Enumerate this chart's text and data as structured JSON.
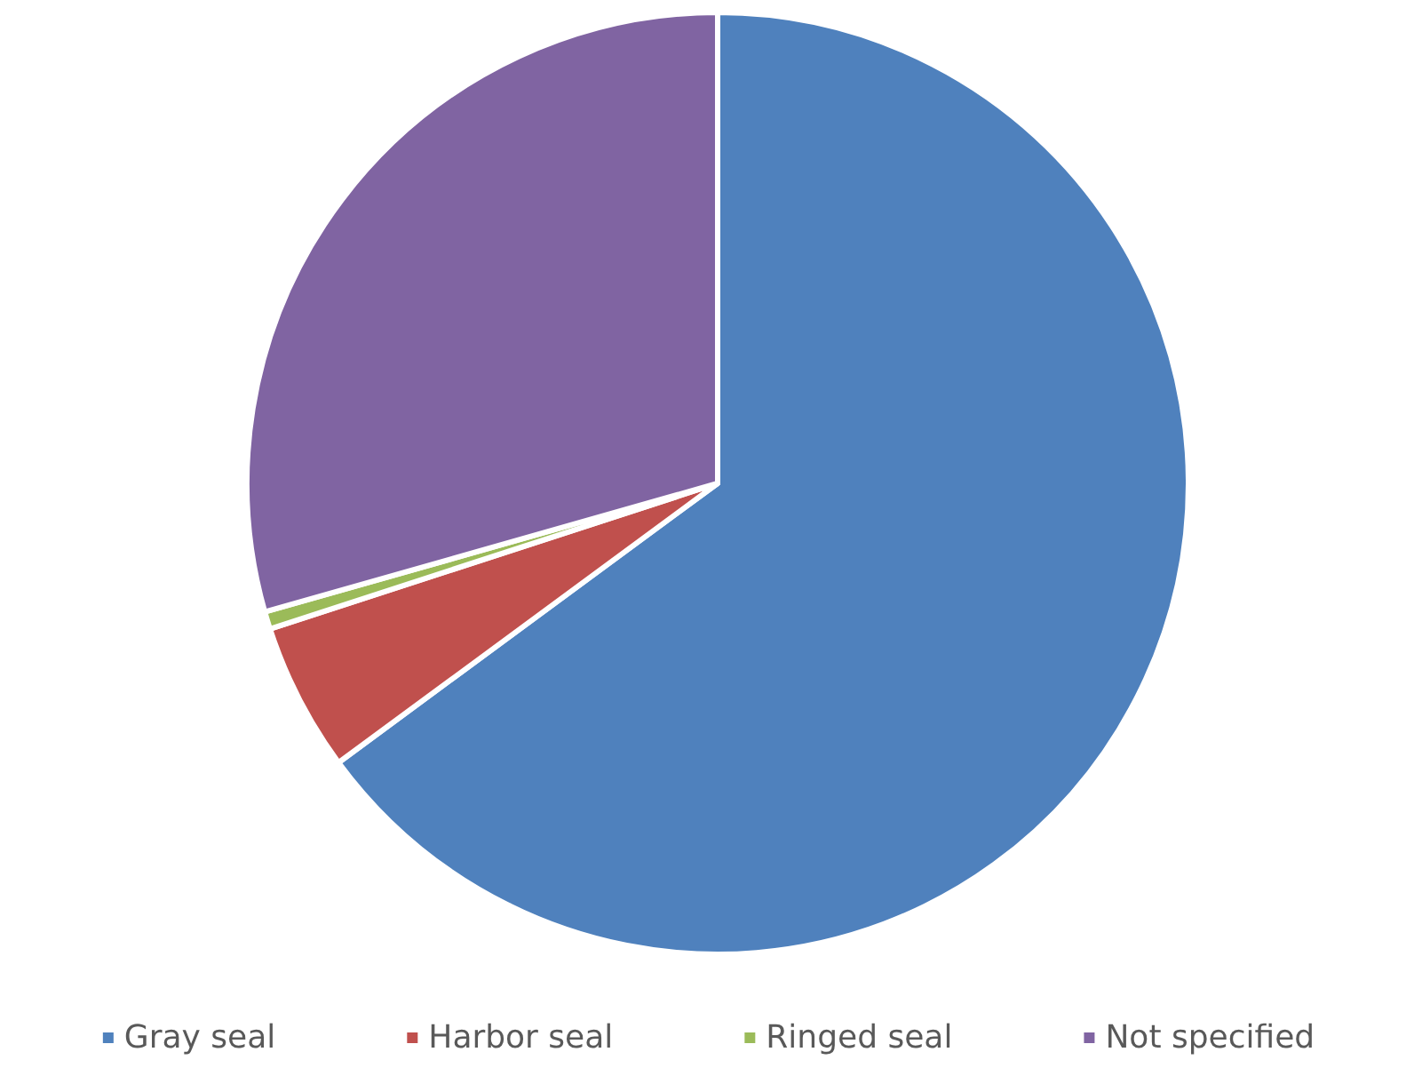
{
  "chart_data": {
    "type": "pie",
    "categories": [
      "Gray seal",
      "Harbor seal",
      "Ringed seal",
      "Not specified"
    ],
    "values": [
      64.9,
      5.1,
      0.6,
      29.4
    ],
    "colors": [
      "#4f81bd",
      "#c0504d",
      "#9bbb59",
      "#8064a2"
    ],
    "legend": "bottom"
  }
}
